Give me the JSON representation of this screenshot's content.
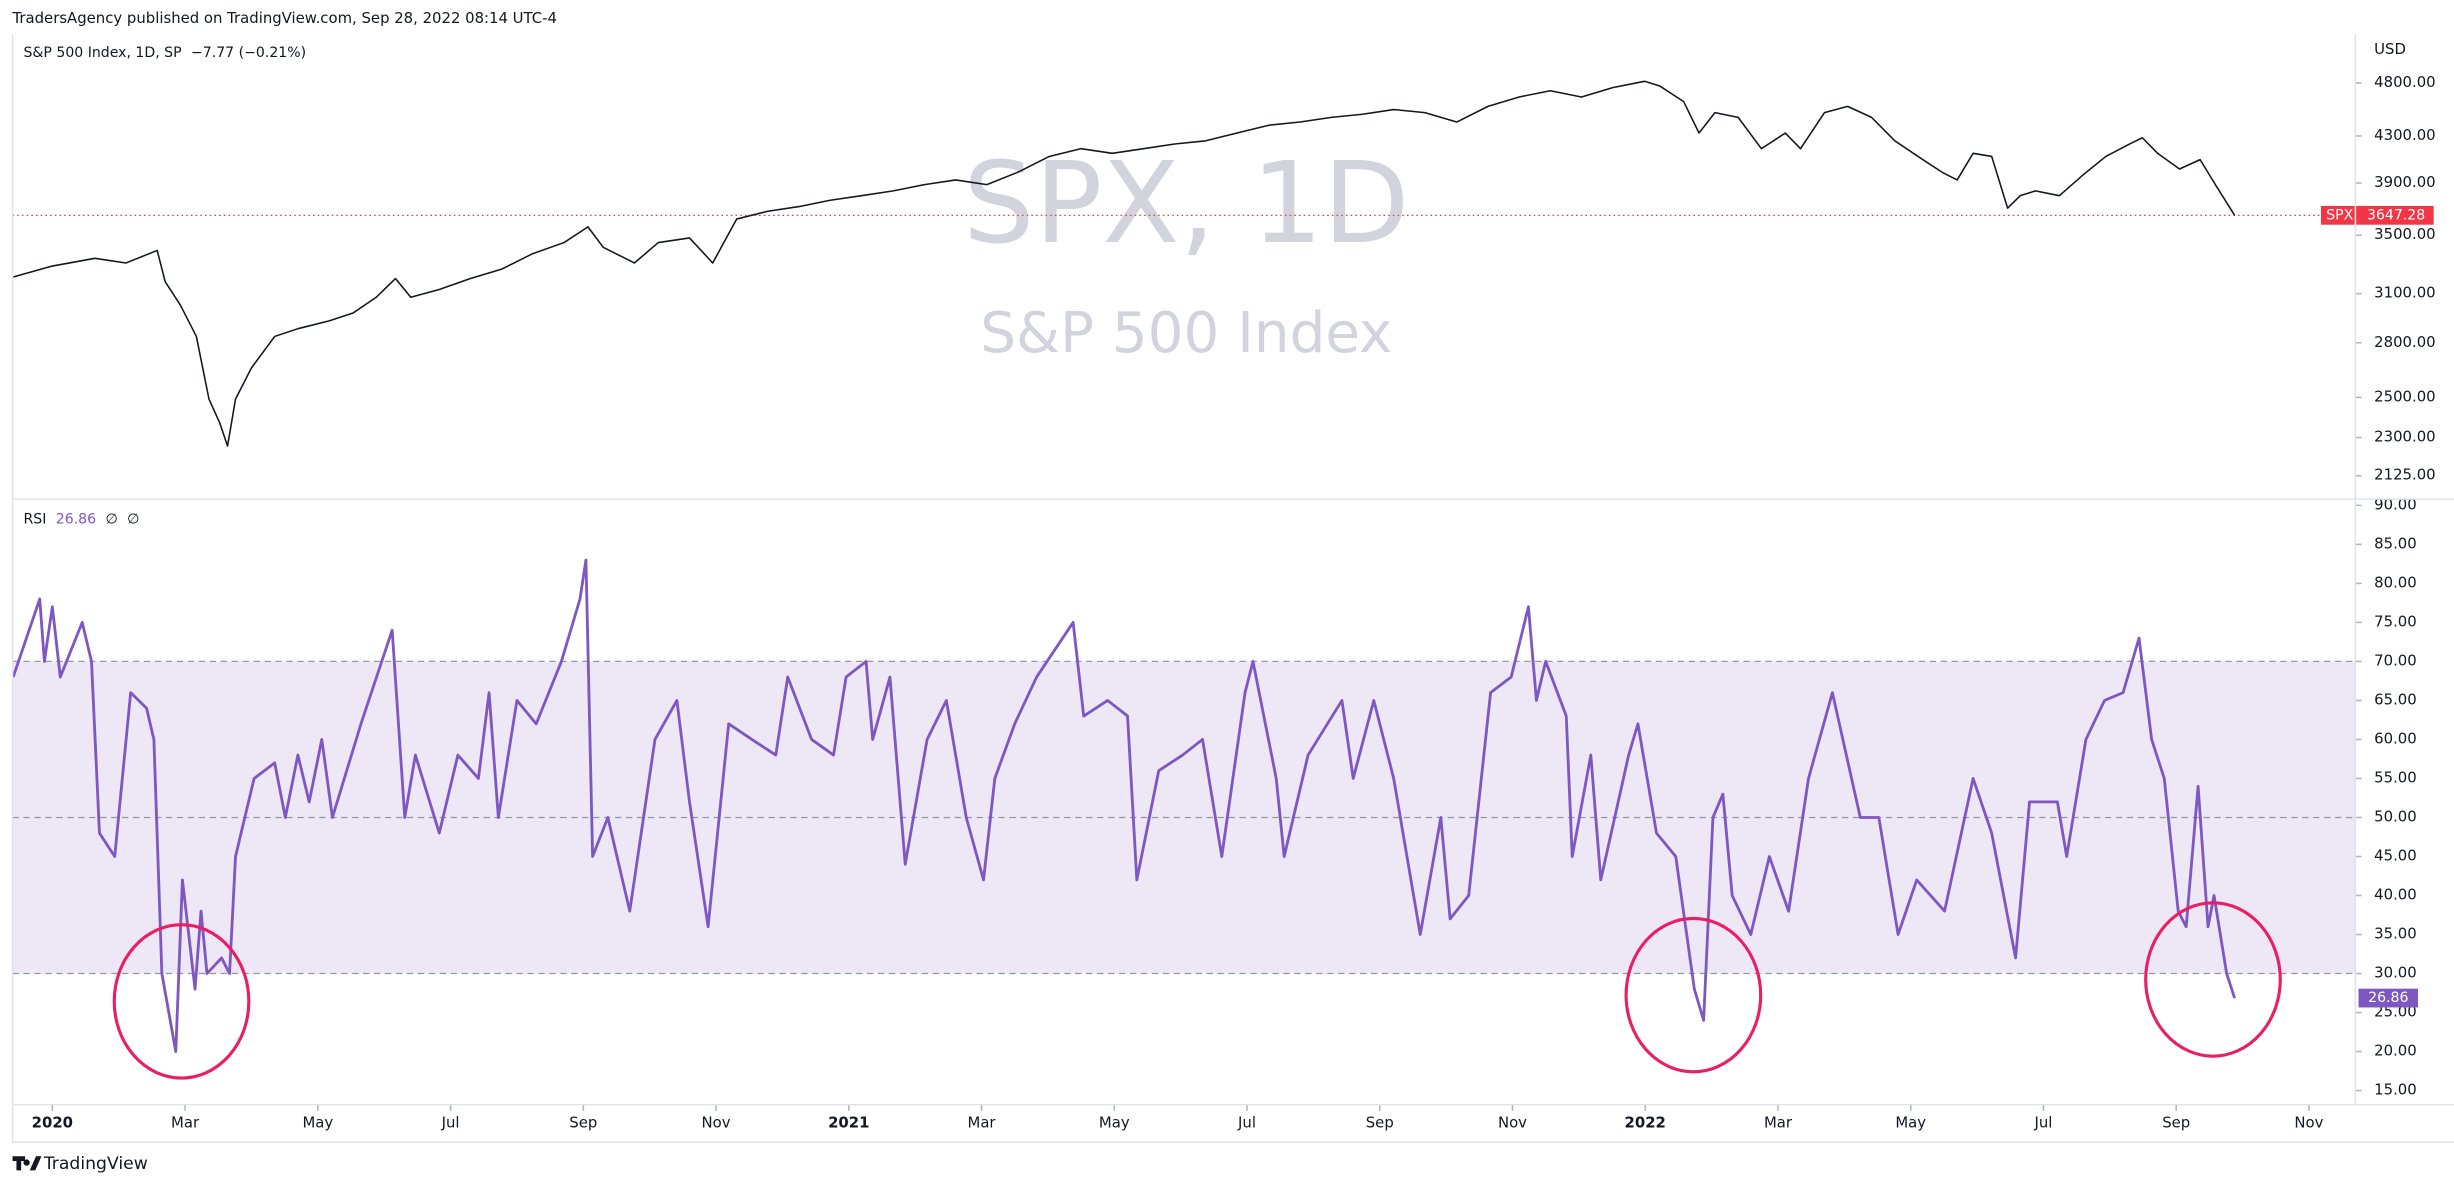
{
  "header": {
    "published": "TradersAgency published on TradingView.com, Sep 28, 2022 08:14 UTC-4"
  },
  "footer": {
    "brand": "TradingView"
  },
  "chart_data": [
    {
      "type": "line",
      "log_scale": true,
      "grid": false,
      "unit": "USD",
      "watermark": [
        "SPX, 1D",
        "S&P 500 Index"
      ],
      "change": "−7.77 (−0.21%)",
      "last_label": {
        "symbol": "SPX",
        "value": 3647.28,
        "color": "#f23645"
      },
      "xlim": [
        -0.6,
        34.7
      ],
      "ylim": [
        2031,
        5308
      ],
      "yticks": [
        {
          "value": 2125,
          "label": "2125.00"
        },
        {
          "value": 2300,
          "label": "2300.00"
        },
        {
          "value": 2500,
          "label": "2500.00"
        },
        {
          "value": 2800,
          "label": "2800.00"
        },
        {
          "value": 3100,
          "label": "3100.00"
        },
        {
          "value": 3500,
          "label": "3500.00"
        },
        {
          "value": 3900,
          "label": "3900.00"
        },
        {
          "value": 4300,
          "label": "4300.00"
        },
        {
          "value": 4800,
          "label": "4800.00"
        }
      ],
      "x": [
        -0.59,
        0,
        0.64,
        1.11,
        1.58,
        1.7,
        1.93,
        2.17,
        2.36,
        2.52,
        2.64,
        2.76,
        3.0,
        3.35,
        3.7,
        4.17,
        4.53,
        4.88,
        5.17,
        5.4,
        5.83,
        6.3,
        6.77,
        7.24,
        7.71,
        8.07,
        8.3,
        8.77,
        9.13,
        9.6,
        9.95,
        10.31,
        10.78,
        11.25,
        11.72,
        12.19,
        12.67,
        13.14,
        13.61,
        14.08,
        14.55,
        15.02,
        15.5,
        15.97,
        16.44,
        16.91,
        17.38,
        17.85,
        18.33,
        18.8,
        19.27,
        19.74,
        20.21,
        20.68,
        21.16,
        21.63,
        22.1,
        22.57,
        23.04,
        23.51,
        23.99,
        24.22,
        24.58,
        24.81,
        25.05,
        25.4,
        25.75,
        26.11,
        26.34,
        26.7,
        27.05,
        27.41,
        27.76,
        28.11,
        28.47,
        28.7,
        28.94,
        29.22,
        29.46,
        29.65,
        29.88,
        30.24,
        30.59,
        30.94,
        31.3,
        31.49,
        31.72,
        32.05,
        32.36,
        32.59,
        32.88
      ],
      "series": [
        {
          "name": "S&P 500 Index, 1D, SP",
          "color": "#131722",
          "values": [
            3209,
            3283,
            3336,
            3304,
            3391,
            3178,
            3027,
            2837,
            2491,
            2373,
            2260,
            2491,
            2658,
            2837,
            2883,
            2930,
            2978,
            3077,
            3199,
            3077,
            3127,
            3199,
            3262,
            3369,
            3447,
            3561,
            3413,
            3304,
            3447,
            3480,
            3304,
            3619,
            3678,
            3714,
            3763,
            3799,
            3837,
            3887,
            3925,
            3887,
            3989,
            4121,
            4188,
            4148,
            4188,
            4229,
            4257,
            4326,
            4397,
            4426,
            4469,
            4498,
            4542,
            4513,
            4426,
            4572,
            4662,
            4723,
            4662,
            4753,
            4816,
            4769,
            4617,
            4326,
            4513,
            4469,
            4188,
            4326,
            4188,
            4513,
            4572,
            4469,
            4257,
            4121,
            3989,
            3925,
            4148,
            4121,
            3702,
            3799,
            3837,
            3799,
            3963,
            4121,
            4229,
            4284,
            4148,
            4015,
            4094,
            3887,
            3647.28
          ]
        }
      ]
    },
    {
      "type": "line",
      "grid": false,
      "current_value": 26.86,
      "legend_extras": [
        "∅",
        "∅"
      ],
      "bands": {
        "lower": 30,
        "middle": 50,
        "upper": 70,
        "fill": "#ede7f6"
      },
      "xlim": [
        -0.6,
        34.7
      ],
      "ylim": [
        13.2,
        90.6
      ],
      "yticks": [
        {
          "value": 15,
          "label": "15.00"
        },
        {
          "value": 20,
          "label": "20.00"
        },
        {
          "value": 25,
          "label": "25.00"
        },
        {
          "value": 30,
          "label": "30.00"
        },
        {
          "value": 35,
          "label": "35.00"
        },
        {
          "value": 40,
          "label": "40.00"
        },
        {
          "value": 45,
          "label": "45.00"
        },
        {
          "value": 50,
          "label": "50.00"
        },
        {
          "value": 55,
          "label": "55.00"
        },
        {
          "value": 60,
          "label": "60.00"
        },
        {
          "value": 65,
          "label": "65.00"
        },
        {
          "value": 70,
          "label": "70.00"
        },
        {
          "value": 75,
          "label": "75.00"
        },
        {
          "value": 80,
          "label": "80.00"
        },
        {
          "value": 85,
          "label": "85.00"
        },
        {
          "value": 90,
          "label": "90.00"
        }
      ],
      "xticks": [
        {
          "value": 0,
          "label": "2020"
        },
        {
          "value": 2,
          "label": "Mar"
        },
        {
          "value": 4,
          "label": "May"
        },
        {
          "value": 6,
          "label": "Jul"
        },
        {
          "value": 8,
          "label": "Sep"
        },
        {
          "value": 10,
          "label": "Nov"
        },
        {
          "value": 12,
          "label": "2021"
        },
        {
          "value": 14,
          "label": "Mar"
        },
        {
          "value": 16,
          "label": "May"
        },
        {
          "value": 18,
          "label": "Jul"
        },
        {
          "value": 20,
          "label": "Sep"
        },
        {
          "value": 22,
          "label": "Nov"
        },
        {
          "value": 24,
          "label": "2022"
        },
        {
          "value": 26,
          "label": "Mar"
        },
        {
          "value": 28,
          "label": "May"
        },
        {
          "value": 30,
          "label": "Jul"
        },
        {
          "value": 32,
          "label": "Sep"
        },
        {
          "value": 34,
          "label": "Nov"
        }
      ],
      "x": [
        -0.59,
        -0.31,
        -0.19,
        -0.12,
        0,
        0.12,
        0.45,
        0.59,
        0.71,
        0.94,
        1.18,
        1.42,
        1.53,
        1.65,
        1.86,
        1.96,
        2.15,
        2.24,
        2.33,
        2.55,
        2.67,
        2.76,
        3.04,
        3.35,
        3.51,
        3.7,
        3.87,
        4.06,
        4.22,
        4.65,
        5.12,
        5.31,
        5.47,
        5.83,
        6.11,
        6.42,
        6.58,
        6.72,
        7.0,
        7.29,
        7.67,
        7.95,
        8.04,
        8.14,
        8.37,
        8.7,
        9.08,
        9.41,
        9.6,
        9.88,
        10.19,
        10.54,
        10.9,
        11.08,
        11.44,
        11.77,
        11.96,
        12.26,
        12.36,
        12.62,
        12.85,
        13.18,
        13.47,
        13.77,
        14.03,
        14.2,
        14.5,
        14.83,
        15.38,
        15.54,
        15.9,
        16.2,
        16.34,
        16.67,
        17.03,
        17.33,
        17.62,
        17.97,
        18.09,
        18.44,
        18.56,
        18.92,
        19.43,
        19.6,
        19.91,
        20.21,
        20.35,
        20.61,
        20.92,
        21.06,
        21.34,
        21.67,
        21.98,
        22.24,
        22.36,
        22.5,
        22.81,
        22.9,
        23.18,
        23.33,
        23.75,
        23.89,
        24.17,
        24.46,
        24.74,
        24.88,
        25.02,
        25.17,
        25.31,
        25.59,
        25.87,
        26.16,
        26.46,
        26.82,
        27.24,
        27.52,
        27.81,
        28.09,
        28.51,
        28.94,
        29.22,
        29.58,
        29.79,
        30.21,
        30.35,
        30.64,
        30.92,
        31.2,
        31.44,
        31.63,
        31.82,
        32.03,
        32.15,
        32.33,
        32.48,
        32.57,
        32.76,
        32.88
      ],
      "series": [
        {
          "name": "RSI",
          "color": "#7e57c2",
          "values": [
            68,
            75,
            78,
            70,
            77,
            68,
            75,
            70,
            48,
            45,
            66,
            64,
            60,
            30,
            20,
            42,
            28,
            38,
            30,
            32,
            30,
            45,
            55,
            57,
            50,
            58,
            52,
            60,
            50,
            62,
            74,
            50,
            58,
            48,
            58,
            55,
            66,
            50,
            65,
            62,
            70,
            78,
            83,
            45,
            50,
            38,
            60,
            65,
            52,
            36,
            62,
            60,
            58,
            68,
            60,
            58,
            68,
            70,
            60,
            68,
            44,
            60,
            65,
            50,
            42,
            55,
            62,
            68,
            75,
            63,
            65,
            63,
            42,
            56,
            58,
            60,
            45,
            66,
            70,
            55,
            45,
            58,
            65,
            55,
            65,
            55,
            48,
            35,
            50,
            37,
            40,
            66,
            68,
            77,
            65,
            70,
            63,
            45,
            58,
            42,
            58,
            62,
            48,
            45,
            28,
            24,
            50,
            53,
            40,
            35,
            45,
            38,
            55,
            66,
            50,
            50,
            35,
            42,
            38,
            55,
            48,
            32,
            52,
            52,
            45,
            60,
            65,
            66,
            73,
            60,
            55,
            38,
            36,
            54,
            36,
            40,
            30,
            26.86
          ]
        }
      ]
    }
  ]
}
